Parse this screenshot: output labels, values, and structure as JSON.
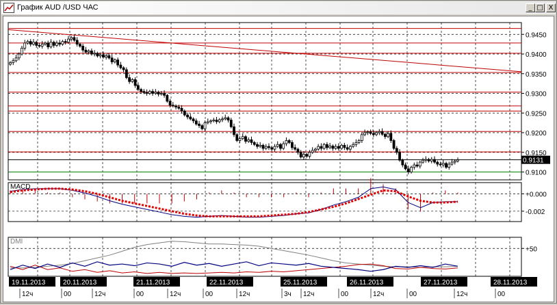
{
  "window": {
    "title": "График AUD /USD  ЧАС",
    "min_glyph": "_",
    "max_glyph": "□",
    "close_glyph": "X"
  },
  "chart_data": {
    "type": "candlestick",
    "instrument": "AUD /USD",
    "timeframe": "ЧАС",
    "price_ticks": [
      "0.9450",
      "0.9400",
      "0.9350",
      "0.9300",
      "0.9250",
      "0.9200",
      "0.9150",
      "0.9100"
    ],
    "current_price": "0.9131",
    "current_price_value": 0.9131,
    "ylim": [
      0.908,
      0.948
    ],
    "resistance_levels": [
      0.9465,
      0.9428,
      0.9402,
      0.9353,
      0.9303,
      0.9268,
      0.9255,
      0.9203,
      0.9151
    ],
    "support_levels": [
      0.91
    ],
    "trendline": {
      "from": 0.9462,
      "to": 0.9355
    },
    "closes": [
      0.9378,
      0.9383,
      0.939,
      0.94,
      0.9415,
      0.9428,
      0.9432,
      0.9425,
      0.943,
      0.9422,
      0.942,
      0.9425,
      0.9428,
      0.9418,
      0.943,
      0.9422,
      0.9428,
      0.9425,
      0.9432,
      0.943,
      0.9438,
      0.9442,
      0.9435,
      0.9425,
      0.942,
      0.941,
      0.9405,
      0.9408,
      0.94,
      0.9402,
      0.9395,
      0.9398,
      0.9392,
      0.9396,
      0.939,
      0.938,
      0.9385,
      0.9372,
      0.9365,
      0.936,
      0.934,
      0.933,
      0.9335,
      0.932,
      0.931,
      0.9305,
      0.9302,
      0.93,
      0.9305,
      0.93,
      0.9303,
      0.9298,
      0.93,
      0.9295,
      0.928,
      0.927,
      0.9268,
      0.9265,
      0.9262,
      0.9255,
      0.9245,
      0.924,
      0.9235,
      0.923,
      0.9222,
      0.9218,
      0.921,
      0.9225,
      0.9228,
      0.923,
      0.9232,
      0.9228,
      0.9233,
      0.9235,
      0.9238,
      0.9232,
      0.9215,
      0.9195,
      0.918,
      0.9185,
      0.919,
      0.9178,
      0.9182,
      0.9175,
      0.917,
      0.9165,
      0.9168,
      0.916,
      0.9165,
      0.9162,
      0.9158,
      0.9165,
      0.917,
      0.916,
      0.9172,
      0.918,
      0.9175,
      0.9162,
      0.9158,
      0.915,
      0.9138,
      0.9145,
      0.914,
      0.915,
      0.9155,
      0.9158,
      0.9165,
      0.916,
      0.917,
      0.9162,
      0.9166,
      0.916,
      0.9165,
      0.916,
      0.9168,
      0.9162,
      0.9158,
      0.9165,
      0.917,
      0.9175,
      0.918,
      0.9195,
      0.92,
      0.9202,
      0.9198,
      0.9195,
      0.92,
      0.9203,
      0.9196,
      0.919,
      0.9198,
      0.918,
      0.916,
      0.915,
      0.913,
      0.9118,
      0.9108,
      0.91,
      0.9112,
      0.9118,
      0.9115,
      0.9125,
      0.913,
      0.9132,
      0.9128,
      0.9132,
      0.9125,
      0.912,
      0.9118,
      0.9122,
      0.9112,
      0.912,
      0.9125,
      0.9128,
      0.9131
    ],
    "macd": {
      "label": "MACD",
      "ticks": [
        "+0.000",
        "-0.002"
      ],
      "tick_values": [
        0.0,
        -0.002
      ],
      "ylim": [
        -0.0032,
        0.0013
      ],
      "line": [
        0.0003,
        0.0005,
        0.0006,
        0.0006,
        0.0006,
        0.0004,
        0.0001,
        -0.0003,
        -0.0008,
        -0.0012,
        -0.0015,
        -0.0018,
        -0.0021,
        -0.0024,
        -0.0026,
        -0.0027,
        -0.0026,
        -0.0025,
        -0.0026,
        -0.0027,
        -0.0027,
        -0.0026,
        -0.0025,
        -0.0023,
        -0.0022,
        -0.0018,
        -0.0013,
        -0.0009,
        -0.0004,
        0.0006,
        0.0008,
        0.0005,
        -0.001,
        -0.0016,
        -0.001,
        -0.0009,
        -0.0009
      ],
      "signal": [
        0.0002,
        0.0004,
        0.0005,
        0.0006,
        0.0006,
        0.0005,
        0.0003,
        0.0,
        -0.0004,
        -0.0008,
        -0.0011,
        -0.0014,
        -0.0017,
        -0.002,
        -0.0023,
        -0.0025,
        -0.0026,
        -0.0026,
        -0.0026,
        -0.0026,
        -0.0026,
        -0.0025,
        -0.0024,
        -0.0023,
        -0.0021,
        -0.0018,
        -0.0015,
        -0.0011,
        -0.0006,
        -0.0001,
        0.0004,
        0.0003,
        -0.0003,
        -0.0008,
        -0.001,
        -0.001,
        -0.0009
      ]
    },
    "dmi": {
      "label": "DMI",
      "ticks": [
        "+50"
      ],
      "tick_values": [
        50
      ],
      "ylim": [
        0,
        70
      ],
      "adx": [
        15,
        15,
        16,
        18,
        20,
        23,
        28,
        33,
        38,
        45,
        52,
        57,
        60,
        63,
        62,
        60,
        58,
        58,
        57,
        56,
        54,
        50,
        46,
        42,
        38,
        33,
        28,
        24,
        22,
        20,
        18,
        17,
        17,
        16,
        17,
        17,
        18
      ],
      "plus_di": [
        18,
        12,
        20,
        12,
        15,
        9,
        12,
        7,
        10,
        6,
        8,
        5,
        7,
        5,
        6,
        5,
        6,
        7,
        6,
        8,
        7,
        9,
        8,
        10,
        12,
        14,
        16,
        18,
        21,
        22,
        19,
        14,
        13,
        16,
        14,
        13,
        15
      ],
      "minus_di": [
        12,
        20,
        14,
        22,
        16,
        24,
        18,
        26,
        20,
        22,
        19,
        24,
        22,
        18,
        25,
        20,
        23,
        18,
        22,
        26,
        19,
        24,
        22,
        20,
        23,
        18,
        16,
        14,
        12,
        9,
        12,
        18,
        16,
        19,
        16,
        22,
        18
      ]
    },
    "dates": [
      "19.11.2013",
      "20.11.2013",
      "21.11.2013",
      "22.11.2013",
      "25.11.2013",
      "26.11.2013",
      "27.11.2013",
      "28.11.2013"
    ],
    "hour_labels": [
      "12ч",
      "00",
      "12ч",
      "00",
      "12ч",
      "00",
      "12ч",
      "3ч",
      "12ч",
      "00",
      "12ч",
      "00",
      "12ч",
      "00"
    ]
  }
}
